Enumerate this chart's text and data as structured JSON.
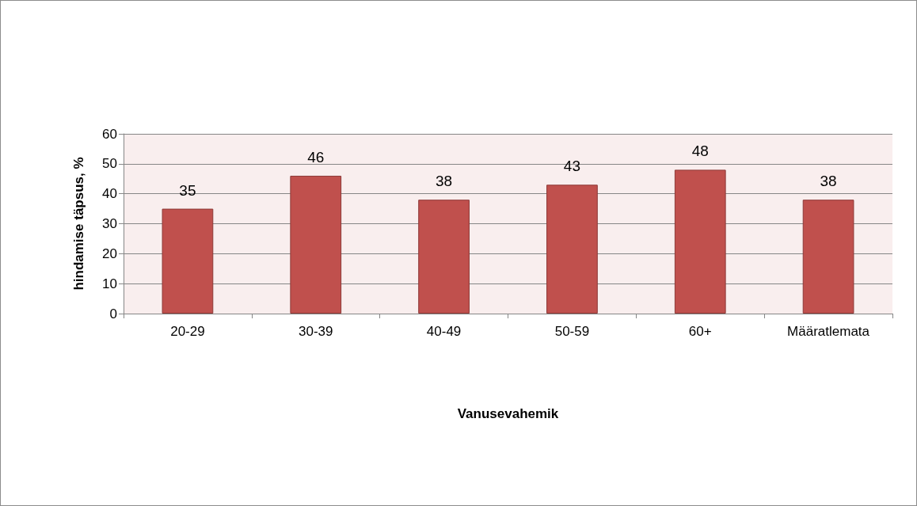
{
  "chart_data": {
    "type": "bar",
    "xlabel": "Vanusevahemik",
    "ylabel": "hindamise täpsus, %",
    "categories": [
      "20-29",
      "30-39",
      "40-49",
      "50-59",
      "60+",
      "Määratlemata"
    ],
    "values": [
      35,
      46,
      38,
      43,
      48,
      38
    ],
    "color": "#c0504d",
    "ylim": [
      0,
      60
    ],
    "yticks": [
      0,
      10,
      20,
      30,
      40,
      50,
      60
    ],
    "grid": "y",
    "data_labels": true
  }
}
